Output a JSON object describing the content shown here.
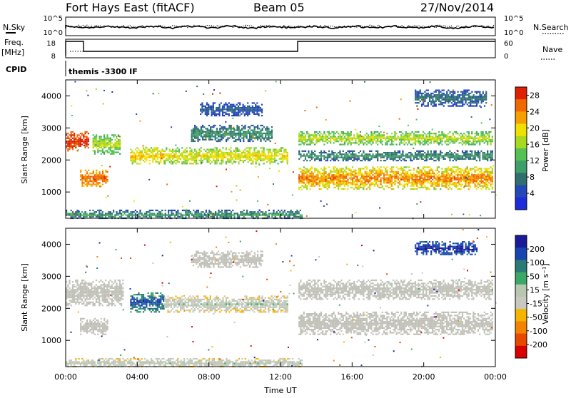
{
  "header": {
    "station": "Fort Hays East (fitACF)",
    "beam": "Beam 05",
    "date": "27/Nov/2014"
  },
  "status_panels": {
    "nsky_label": "N.Sky",
    "nsky_ticks": [
      "10^5",
      "10^0"
    ],
    "nsearch_label": "N.Search",
    "nsearch_ticks": [
      "10^5",
      "10^0"
    ],
    "freq_label": "Freq.",
    "freq_unit": "[MHz]",
    "freq_ticks": [
      "18",
      "8"
    ],
    "nave_label": "Nave",
    "nave_ticks": [
      "60",
      "0"
    ],
    "cpid_label": "CPID",
    "cpid_text": "themis -3300 IF"
  },
  "colors": {
    "power": [
      "#1c2cd8",
      "#2448b8",
      "#2f6f6f",
      "#3f9f68",
      "#54c154",
      "#a8d820",
      "#f0e000",
      "#f5a000",
      "#f06800",
      "#e02000"
    ],
    "velocity": [
      "#1a1a9a",
      "#1844b0",
      "#2a7a78",
      "#3aa868",
      "#b8c8b0",
      "#c8c8c0",
      "#f4b400",
      "#f28400",
      "#e84800",
      "#d80000"
    ],
    "ground_scatter": "#c0c0b8"
  },
  "chart_data": [
    {
      "type": "heatmap",
      "name_panel": "power",
      "x": {
        "label": "",
        "ticks": [
          "00:00",
          "04:00",
          "08:00",
          "12:00",
          "16:00",
          "20:00",
          "00:00"
        ],
        "range_hours": [
          0,
          24
        ]
      },
      "y": {
        "label": "Slant Range [km]",
        "ticks": [
          "1000",
          "2000",
          "3000",
          "4000"
        ],
        "range_km": [
          180,
          4500
        ]
      },
      "colorbar": {
        "label": "Power [dB]",
        "ticks": [
          "4",
          "8",
          "12",
          "16",
          "20",
          "24",
          "28"
        ],
        "range": [
          0,
          30
        ]
      },
      "bands": [
        {
          "t0": 0.0,
          "t1": 1.3,
          "r0": 2300,
          "r1": 2900,
          "v0": 24,
          "v1": 30
        },
        {
          "t0": 0.8,
          "t1": 2.3,
          "r0": 1200,
          "r1": 1700,
          "v0": 20,
          "v1": 28
        },
        {
          "t0": 1.5,
          "t1": 3.0,
          "r0": 2200,
          "r1": 2800,
          "v0": 10,
          "v1": 20
        },
        {
          "t0": 3.6,
          "t1": 5.5,
          "r0": 1900,
          "r1": 2400,
          "v0": 14,
          "v1": 24
        },
        {
          "t0": 5.5,
          "t1": 12.4,
          "r0": 1900,
          "r1": 2400,
          "v0": 12,
          "v1": 22
        },
        {
          "t0": 7.0,
          "t1": 11.5,
          "r0": 2600,
          "r1": 3100,
          "v0": 4,
          "v1": 12
        },
        {
          "t0": 7.5,
          "t1": 11.0,
          "r0": 3400,
          "r1": 3800,
          "v0": 2,
          "v1": 8
        },
        {
          "t0": 13.0,
          "t1": 23.8,
          "r0": 2500,
          "r1": 2900,
          "v0": 10,
          "v1": 20
        },
        {
          "t0": 13.0,
          "t1": 23.8,
          "r0": 1100,
          "r1": 1800,
          "v0": 14,
          "v1": 28
        },
        {
          "t0": 13.0,
          "t1": 23.8,
          "r0": 2000,
          "r1": 2300,
          "v0": 4,
          "v1": 12
        },
        {
          "t0": 19.5,
          "t1": 23.5,
          "r0": 3700,
          "r1": 4200,
          "v0": 2,
          "v1": 10
        },
        {
          "t0": 0.0,
          "t1": 13.2,
          "r0": 180,
          "r1": 450,
          "v0": 2,
          "v1": 14
        }
      ]
    },
    {
      "type": "heatmap",
      "name_panel": "velocity",
      "x": {
        "label": "Time UT",
        "ticks": [
          "00:00",
          "04:00",
          "08:00",
          "12:00",
          "16:00",
          "20:00",
          "00:00"
        ],
        "range_hours": [
          0,
          24
        ]
      },
      "y": {
        "label": "Slant Range [km]",
        "ticks": [
          "1000",
          "2000",
          "3000",
          "4000"
        ],
        "range_km": [
          180,
          4500
        ]
      },
      "colorbar": {
        "label": "Velocity [m s⁻¹]",
        "ticks": [
          "200",
          "100",
          "50",
          "15",
          "-15",
          "-50",
          "-100",
          "-200"
        ],
        "range": [
          -250,
          250
        ]
      },
      "bands": [
        {
          "t0": 0.0,
          "t1": 3.2,
          "r0": 2100,
          "r1": 2900,
          "v0": -10,
          "v1": 10,
          "gs": true
        },
        {
          "t0": 0.8,
          "t1": 2.3,
          "r0": 1200,
          "r1": 1700,
          "v0": -10,
          "v1": 10,
          "gs": true
        },
        {
          "t0": 3.6,
          "t1": 5.5,
          "r0": 1900,
          "r1": 2500,
          "v0": 60,
          "v1": 220
        },
        {
          "t0": 5.5,
          "t1": 12.4,
          "r0": 1900,
          "r1": 2400,
          "v0": -90,
          "v1": 60
        },
        {
          "t0": 7.0,
          "t1": 11.0,
          "r0": 3300,
          "r1": 3800,
          "v0": -10,
          "v1": 10,
          "gs": true
        },
        {
          "t0": 13.0,
          "t1": 23.8,
          "r0": 2300,
          "r1": 2900,
          "v0": -10,
          "v1": 10,
          "gs": true
        },
        {
          "t0": 13.0,
          "t1": 23.8,
          "r0": 1200,
          "r1": 1900,
          "v0": -10,
          "v1": 10,
          "gs": true
        },
        {
          "t0": 19.5,
          "t1": 23.0,
          "r0": 3700,
          "r1": 4100,
          "v0": 120,
          "v1": 240
        },
        {
          "t0": 0.0,
          "t1": 13.2,
          "r0": 180,
          "r1": 450,
          "v0": -80,
          "v1": 60
        }
      ]
    }
  ]
}
